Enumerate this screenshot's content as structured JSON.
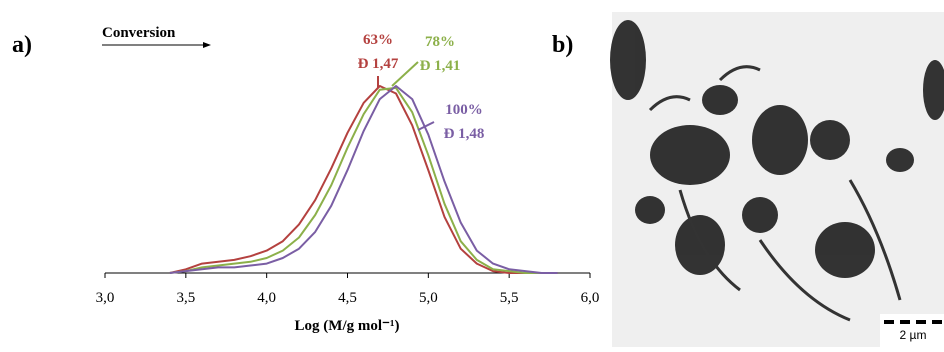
{
  "figure": {
    "panel_a": "a)",
    "panel_b": "b)",
    "scale_bar": "2 µm"
  },
  "chart_data": {
    "type": "line",
    "arrow_label": "Conversion",
    "xlabel": "Log (M/g mol⁻¹)",
    "x": [
      3.4,
      3.5,
      3.6,
      3.7,
      3.8,
      3.9,
      4.0,
      4.1,
      4.2,
      4.3,
      4.4,
      4.5,
      4.6,
      4.7,
      4.8,
      4.9,
      5.0,
      5.1,
      5.2,
      5.3,
      5.4,
      5.5,
      5.6,
      5.7,
      5.8
    ],
    "xlim": [
      3,
      6
    ],
    "ylim": [
      0,
      1
    ],
    "xticks": [
      {
        "value": 3,
        "label": "3,0"
      },
      {
        "value": 3.5,
        "label": "3,5"
      },
      {
        "value": 4,
        "label": "4,0"
      },
      {
        "value": 4.5,
        "label": "4,5"
      },
      {
        "value": 5,
        "label": "5,0"
      },
      {
        "value": 5.5,
        "label": "5,5"
      },
      {
        "value": 6,
        "label": "6,0"
      }
    ],
    "series": [
      {
        "name": "63%",
        "dispersity": "Đ 1,47",
        "color": "#b4413f",
        "values": [
          0,
          0.02,
          0.05,
          0.06,
          0.07,
          0.09,
          0.12,
          0.17,
          0.26,
          0.39,
          0.56,
          0.75,
          0.91,
          1.0,
          0.96,
          0.79,
          0.55,
          0.3,
          0.13,
          0.05,
          0.01,
          0,
          0,
          0,
          0
        ]
      },
      {
        "name": "78%",
        "dispersity": "Đ 1,41",
        "color": "#8cb04a",
        "values": [
          0,
          0.01,
          0.03,
          0.04,
          0.05,
          0.06,
          0.08,
          0.12,
          0.19,
          0.31,
          0.47,
          0.67,
          0.85,
          0.98,
          0.99,
          0.86,
          0.63,
          0.37,
          0.17,
          0.07,
          0.02,
          0.01,
          0,
          0,
          0
        ]
      },
      {
        "name": "100%",
        "dispersity": "Đ 1,48",
        "color": "#7a5ea4",
        "values": [
          0,
          0.01,
          0.02,
          0.03,
          0.03,
          0.04,
          0.05,
          0.08,
          0.13,
          0.22,
          0.36,
          0.55,
          0.76,
          0.93,
          1.0,
          0.93,
          0.74,
          0.49,
          0.27,
          0.12,
          0.05,
          0.02,
          0.01,
          0,
          0
        ]
      }
    ]
  }
}
